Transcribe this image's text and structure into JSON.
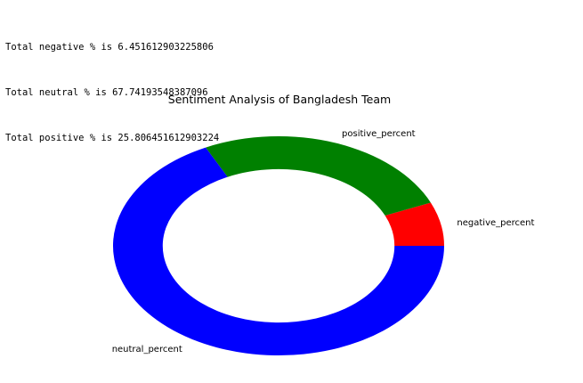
{
  "output": {
    "lines": [
      "Total negative % is 6.451612903225806",
      "Total neutral % is 67.74193548387096",
      "Total positive % is 25.806451612903224"
    ]
  },
  "chart_data": {
    "type": "pie",
    "title": "Sentiment Analysis of Bangladesh Team",
    "slices": [
      {
        "label": "negative_percent",
        "value": 6.451612903225806,
        "color": "#ff0000"
      },
      {
        "label": "positive_percent",
        "value": 25.806451612903224,
        "color": "#008000"
      },
      {
        "label": "neutral_percent",
        "value": 67.74193548387096,
        "color": "#0000ff"
      }
    ],
    "donut": true,
    "start_angle_deg": 0,
    "direction": "counterclockwise"
  }
}
